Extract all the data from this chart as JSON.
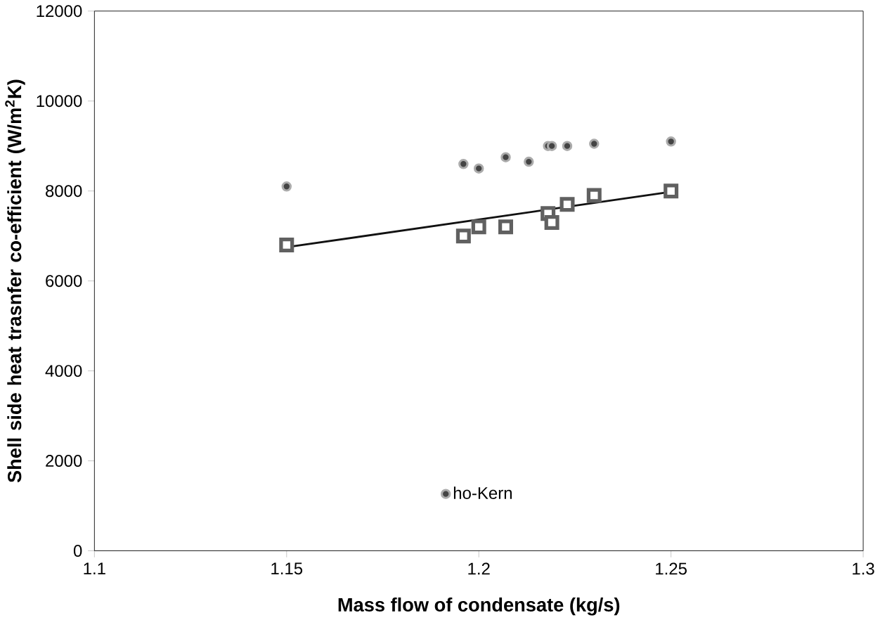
{
  "chart_data": {
    "type": "scatter",
    "xlabel": "Mass flow of condensate (kg/s)",
    "ylabel": "Shell  side heat trasnfer co-efficient (W/m$^{2}$K)",
    "xlim": [
      1.1,
      1.3
    ],
    "ylim": [
      0,
      12000
    ],
    "xticks": [
      1.1,
      1.15,
      1.2,
      1.25,
      1.3
    ],
    "yticks": [
      0,
      2000,
      4000,
      6000,
      8000,
      10000,
      12000
    ],
    "grid": false,
    "legend": "bottom",
    "series": [
      {
        "name": "ho-Kern",
        "marker": "circle",
        "color": "#444444",
        "x": [
          1.15,
          1.196,
          1.2,
          1.207,
          1.213,
          1.218,
          1.219,
          1.223,
          1.23,
          1.25
        ],
        "values": [
          8100,
          8600,
          8500,
          8750,
          8650,
          9000,
          9000,
          9000,
          9050,
          9100
        ]
      },
      {
        "marker": "square",
        "color": "#606060",
        "x": [
          1.15,
          1.196,
          1.2,
          1.207,
          1.218,
          1.219,
          1.223,
          1.23,
          1.25
        ],
        "values": [
          6800,
          7000,
          7200,
          7200,
          7500,
          7300,
          7700,
          7900,
          8000
        ]
      },
      {
        "type": "line",
        "marker": "none",
        "color": "#111111",
        "x": [
          1.15,
          1.25
        ],
        "values": [
          6750,
          7980
        ]
      }
    ]
  }
}
